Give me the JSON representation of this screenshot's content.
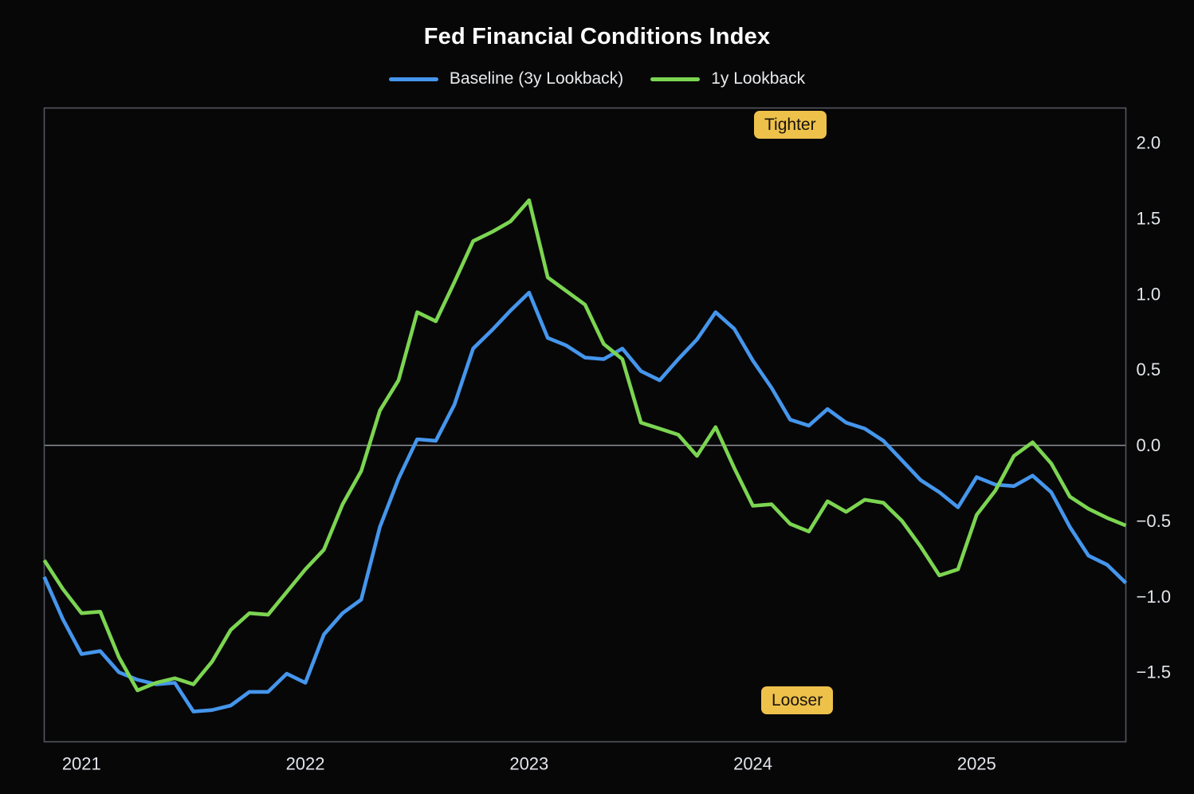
{
  "page": {
    "background": "#070708"
  },
  "chart_data": {
    "type": "line",
    "title": "Fed Financial Conditions Index",
    "x": [
      "2020-11",
      "2020-12",
      "2021-01",
      "2021-02",
      "2021-03",
      "2021-04",
      "2021-05",
      "2021-06",
      "2021-07",
      "2021-08",
      "2021-09",
      "2021-10",
      "2021-11",
      "2021-12",
      "2022-01",
      "2022-02",
      "2022-03",
      "2022-04",
      "2022-05",
      "2022-06",
      "2022-07",
      "2022-08",
      "2022-09",
      "2022-10",
      "2022-11",
      "2022-12",
      "2023-01",
      "2023-02",
      "2023-03",
      "2023-04",
      "2023-05",
      "2023-06",
      "2023-07",
      "2023-08",
      "2023-09",
      "2023-10",
      "2023-11",
      "2023-12",
      "2024-01",
      "2024-02",
      "2024-03",
      "2024-04",
      "2024-05",
      "2024-06",
      "2024-07",
      "2024-08",
      "2024-09",
      "2024-10",
      "2024-11",
      "2024-12",
      "2025-01",
      "2025-02",
      "2025-03",
      "2025-04",
      "2025-05",
      "2025-06",
      "2025-07",
      "2025-08",
      "2025-09"
    ],
    "series": [
      {
        "name": "baseline_3y",
        "label": "Baseline (3y Lookback)",
        "color": "#4596ec",
        "values": [
          -0.87,
          -1.15,
          -1.38,
          -1.36,
          -1.5,
          -1.55,
          -1.58,
          -1.57,
          -1.76,
          -1.75,
          -1.72,
          -1.63,
          -1.63,
          -1.51,
          -1.57,
          -1.25,
          -1.11,
          -1.02,
          -0.54,
          -0.22,
          0.04,
          0.03,
          0.27,
          0.64,
          0.76,
          0.89,
          1.01,
          0.71,
          0.66,
          0.58,
          0.57,
          0.64,
          0.49,
          0.43,
          0.57,
          0.7,
          0.88,
          0.77,
          0.56,
          0.38,
          0.17,
          0.13,
          0.24,
          0.15,
          0.11,
          0.03,
          -0.1,
          -0.23,
          -0.31,
          -0.41,
          -0.21,
          -0.26,
          -0.27,
          -0.2,
          -0.31,
          -0.54,
          -0.73,
          -0.79,
          -0.91
        ]
      },
      {
        "name": "lookback_1y",
        "label": "1y Lookback",
        "color": "#7cd551",
        "values": [
          -0.76,
          -0.95,
          -1.11,
          -1.1,
          -1.4,
          -1.62,
          -1.57,
          -1.54,
          -1.58,
          -1.43,
          -1.22,
          -1.11,
          -1.12,
          -0.97,
          -0.82,
          -0.69,
          -0.39,
          -0.17,
          0.23,
          0.43,
          0.88,
          0.82,
          1.08,
          1.35,
          1.41,
          1.48,
          1.62,
          1.11,
          1.02,
          0.93,
          0.67,
          0.57,
          0.15,
          0.11,
          0.07,
          -0.07,
          0.12,
          -0.15,
          -0.4,
          -0.39,
          -0.52,
          -0.57,
          -0.37,
          -0.44,
          -0.36,
          -0.38,
          -0.5,
          -0.67,
          -0.86,
          -0.82,
          -0.46,
          -0.3,
          -0.07,
          0.02,
          -0.12,
          -0.34,
          -0.42,
          -0.48,
          -0.53
        ]
      }
    ],
    "xlabel": "",
    "ylabel": "",
    "ylim": [
      -1.96,
      2.23
    ],
    "grid": false,
    "zero_line": true,
    "legend_position": "top-center",
    "y_ticks": [
      {
        "v": 2.0,
        "label": "2.0"
      },
      {
        "v": 1.5,
        "label": "1.5"
      },
      {
        "v": 1.0,
        "label": "1.0"
      },
      {
        "v": 0.5,
        "label": "0.5"
      },
      {
        "v": 0.0,
        "label": "0.0"
      },
      {
        "v": -0.5,
        "label": "−0.5"
      },
      {
        "v": -1.0,
        "label": "−1.0"
      },
      {
        "v": -1.5,
        "label": "−1.5"
      }
    ],
    "x_ticks": [
      {
        "month": "2021-01",
        "label": "2021"
      },
      {
        "month": "2022-01",
        "label": "2022"
      },
      {
        "month": "2023-01",
        "label": "2023"
      },
      {
        "month": "2024-01",
        "label": "2024"
      },
      {
        "month": "2025-01",
        "label": "2025"
      }
    ],
    "annotations": [
      {
        "text": "Tighter",
        "position": "top"
      },
      {
        "text": "Looser",
        "position": "bottom"
      }
    ],
    "annotation_style": {
      "bg": "#eec14b",
      "fg": "#17130a"
    },
    "axis_colors": {
      "border": "#53575d",
      "zero_line": "#8f9399",
      "tick_text": "#e2e5e9"
    }
  }
}
